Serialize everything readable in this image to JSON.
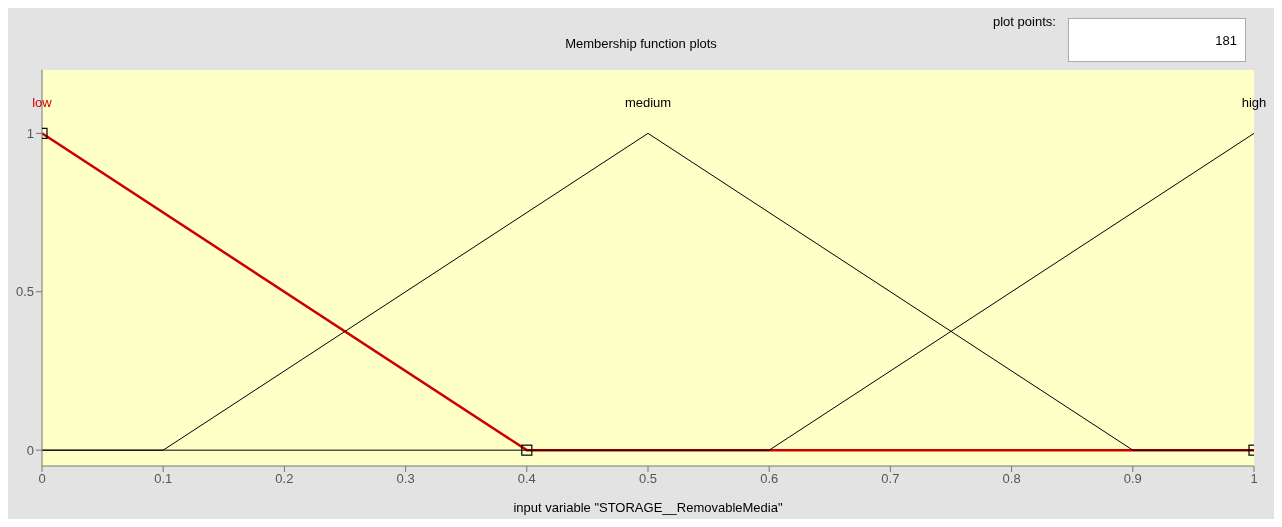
{
  "chart_data": {
    "type": "line",
    "title": "Membership function plots",
    "xlabel": "input variable \"STORAGE__RemovableMedia\"",
    "annotations": [
      "plot points:",
      "181"
    ],
    "series": [
      {
        "name": "low",
        "color": "#cc0000",
        "x": [
          0,
          0.4,
          1
        ],
        "values": [
          1,
          0,
          0
        ],
        "marker": "square"
      },
      {
        "name": "medium",
        "color": "#000000",
        "x": [
          0,
          0.1,
          0.5,
          0.9,
          1
        ],
        "values": [
          0,
          0,
          1,
          0,
          0
        ]
      },
      {
        "name": "high",
        "color": "#000000",
        "x": [
          0,
          0.6,
          1
        ],
        "values": [
          0,
          0,
          1
        ]
      }
    ],
    "xlim": [
      0,
      1
    ],
    "xticks": [
      0,
      0.1,
      0.2,
      0.3,
      0.4,
      0.5,
      0.6,
      0.7,
      0.8,
      0.9,
      1
    ],
    "ylim": [
      -0.05,
      1.2
    ],
    "yticks": [
      0,
      0.5,
      1
    ],
    "grid": false,
    "legend": false,
    "line_style": "solid"
  }
}
